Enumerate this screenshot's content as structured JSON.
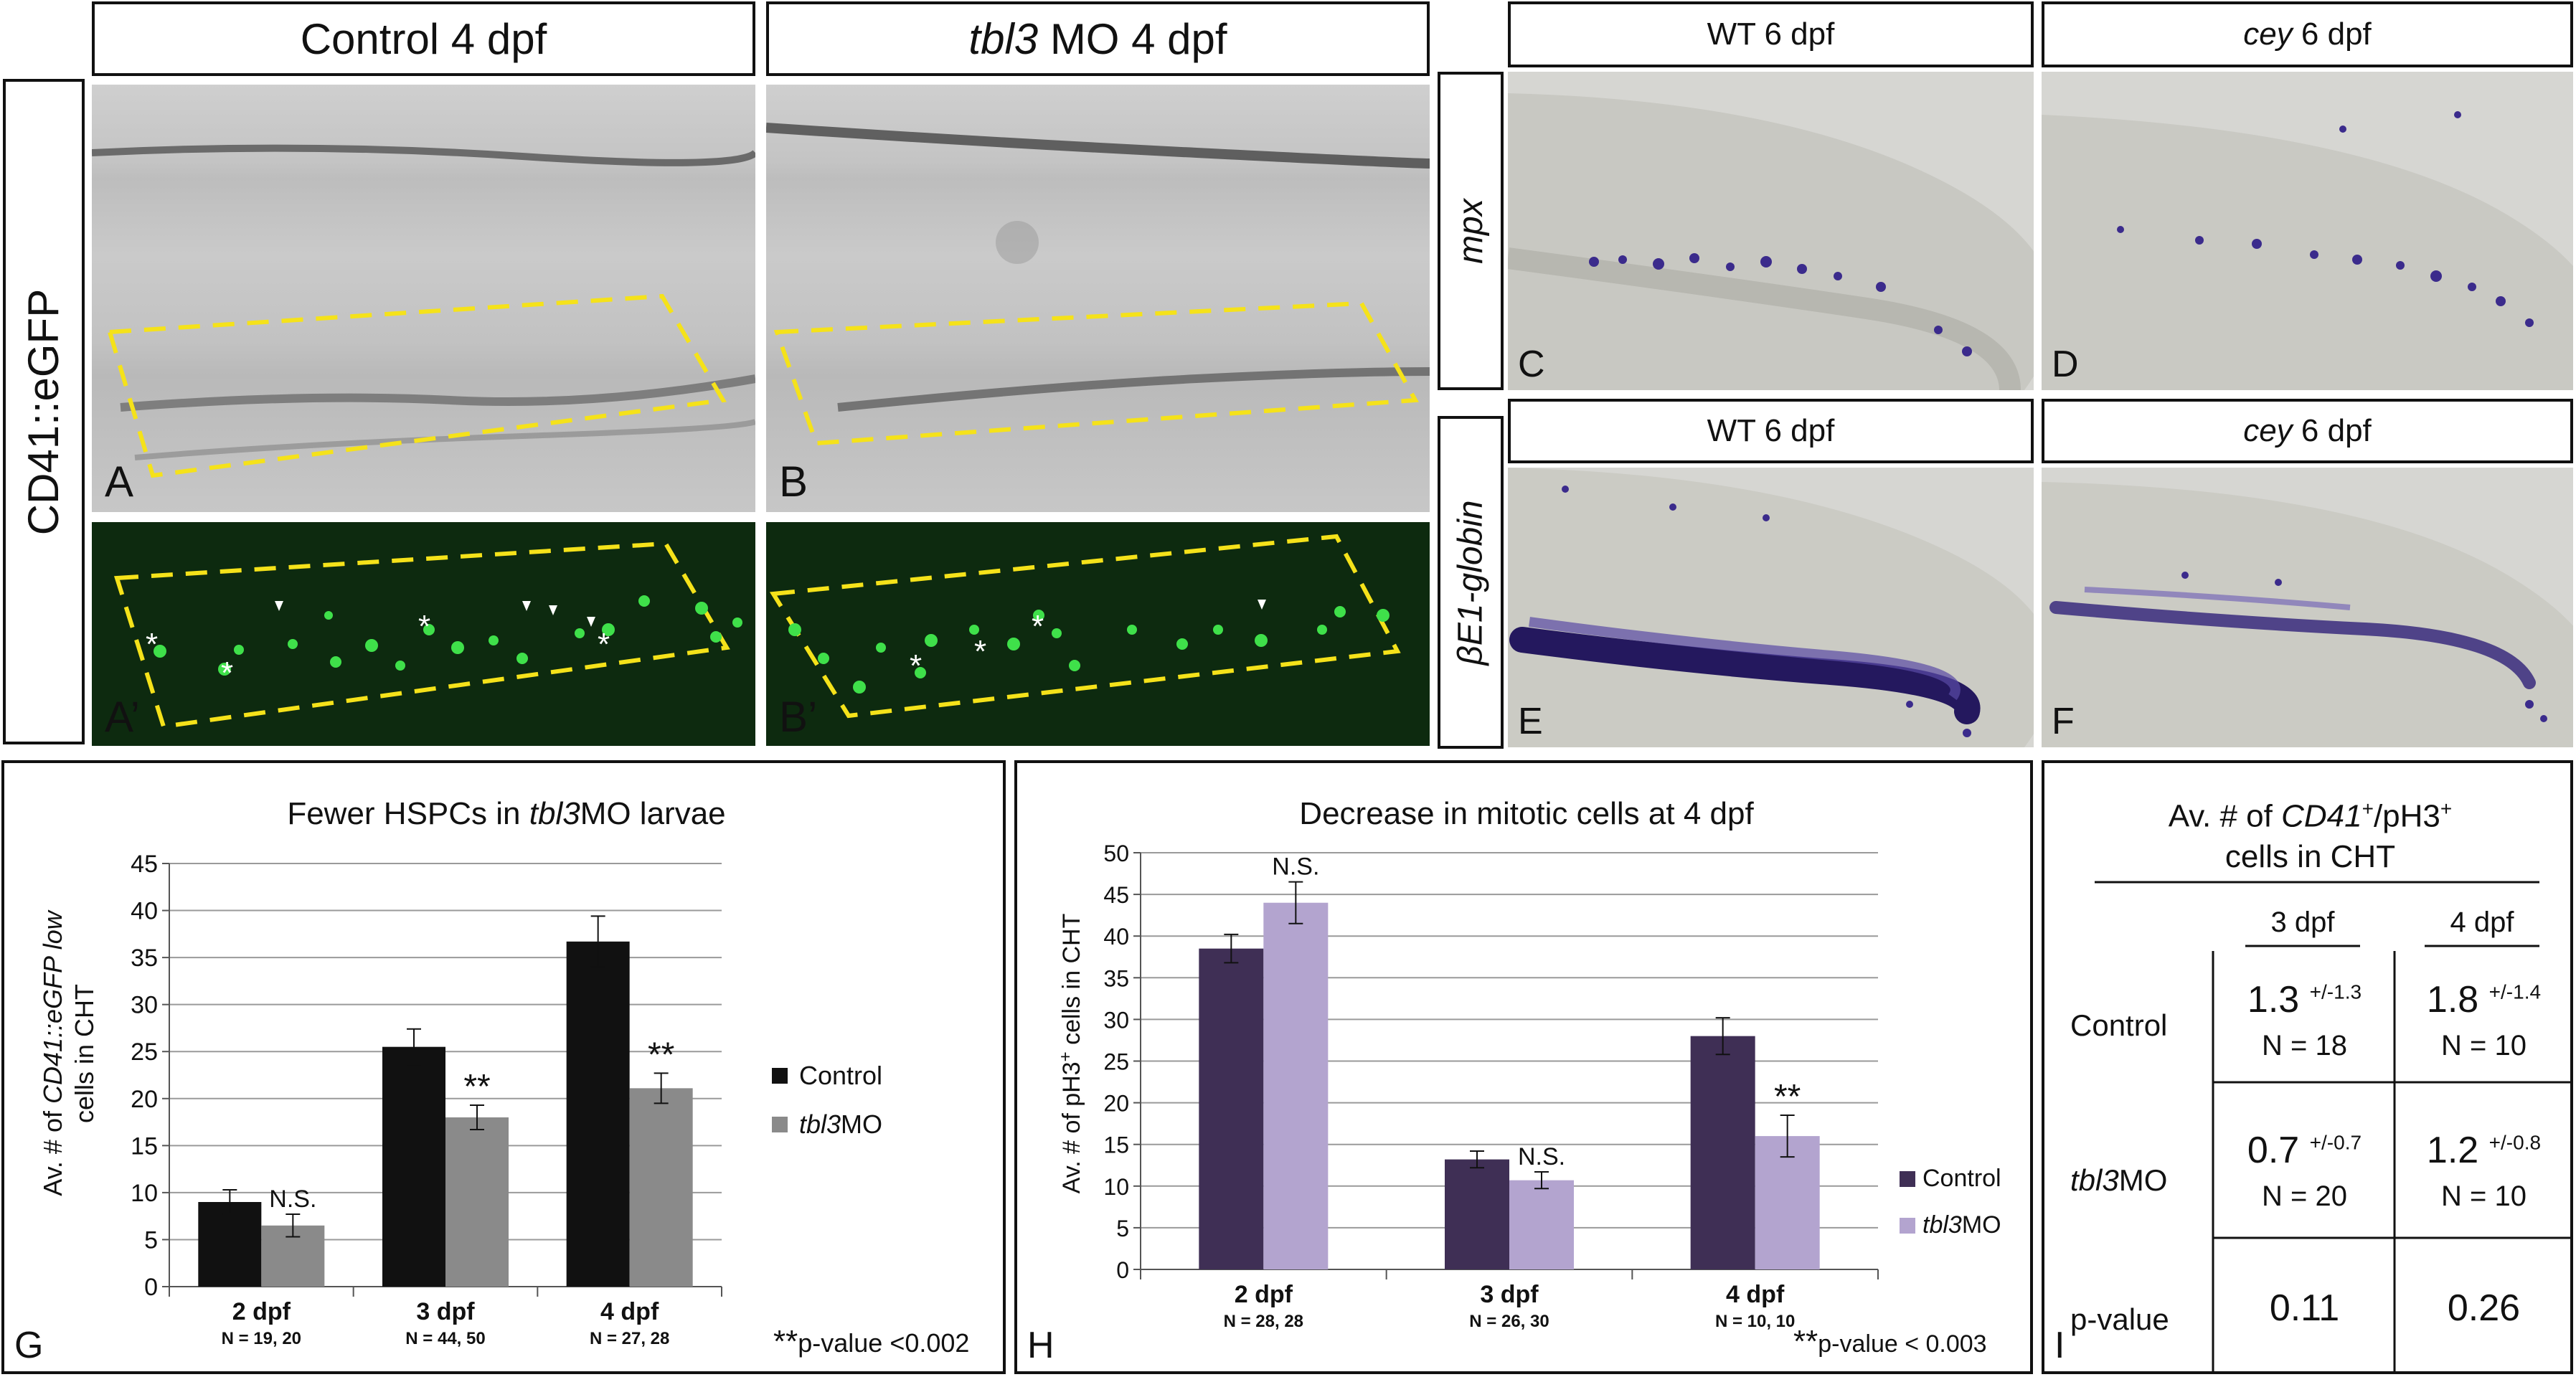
{
  "top_left": {
    "side_label": "CD41::eGFP",
    "col_a_title": "Control 4 dpf",
    "col_b_title_italic": "tbl3",
    "col_b_title_rest": " MO 4 dpf",
    "panel_a": "A",
    "panel_b": "B",
    "panel_a2": "A’",
    "panel_b2": "B’"
  },
  "top_right": {
    "row1_label": "mpx",
    "row2_label": "βE1-globin",
    "c_title": "WT 6 dpf",
    "d_title_italic": "cey",
    "d_title_rest": " 6 dpf",
    "e_title": "WT 6 dpf",
    "f_title_italic": "cey",
    "f_title_rest": " 6 dpf",
    "panel_c": "C",
    "panel_d": "D",
    "panel_e": "E",
    "panel_f": "F"
  },
  "chart_g": {
    "panel": "G",
    "title_pre": "Fewer HSPCs in ",
    "title_italic": "tbl3",
    "title_post": "MO larvae",
    "ylabel_line1_pre": "Av. # of ",
    "ylabel_line1_italic": "CD41::eGFP low",
    "ylabel_line2": "cells in CHT",
    "legend_control": "Control",
    "legend_mo_italic": "tbl3",
    "legend_mo_rest": "MO",
    "pvalue_stars": "**",
    "pvalue_text": "p-value <0.002"
  },
  "chart_h": {
    "panel": "H",
    "title": "Decrease in mitotic cells at 4 dpf",
    "ylabel_pre": "Av. # of pH3",
    "ylabel_sup": "+",
    "ylabel_post": " cells in CHT",
    "legend_control": "Control",
    "legend_mo_italic": "tbl3",
    "legend_mo_rest": "MO",
    "pvalue_stars": "**",
    "pvalue_text": "p-value < 0.003"
  },
  "table_i": {
    "panel": "I",
    "title_line1_pre": "Av. # of ",
    "title_line1_italic": "CD41",
    "title_line1_sup1": "+",
    "title_line1_post": "/pH3",
    "title_line1_sup2": "+",
    "title_line2": "cells in CHT",
    "col1": "3 dpf",
    "col2": "4 dpf",
    "row_control": "Control",
    "row_mo_italic": "tbl3",
    "row_mo_rest": "MO",
    "row_p": "p-value",
    "c_3_val": "1.3",
    "c_3_sd": "+/-1.3",
    "c_3_n": "N = 18",
    "c_4_val": "1.8",
    "c_4_sd": "+/-1.4",
    "c_4_n": "N = 10",
    "m_3_val": "0.7",
    "m_3_sd": "+/-0.7",
    "m_3_n": "N = 20",
    "m_4_val": "1.2",
    "m_4_sd": "+/-0.8",
    "m_4_n": "N = 10",
    "p_3": "0.11",
    "p_4": "0.26"
  },
  "chart_data": [
    {
      "type": "bar",
      "title": "Fewer HSPCs in tbl3MO larvae",
      "ylabel": "Av. # of CD41::eGFP low cells in CHT",
      "ylim": [
        0,
        45
      ],
      "yticks": [
        0,
        5,
        10,
        15,
        20,
        25,
        30,
        35,
        40,
        45
      ],
      "categories": [
        "2 dpf",
        "3 dpf",
        "4 dpf"
      ],
      "category_n": [
        "N = 19, 20",
        "N = 44, 50",
        "N = 27, 28"
      ],
      "series": [
        {
          "name": "Control",
          "color": "#111111",
          "values": [
            9.0,
            25.5,
            36.7
          ],
          "errors": [
            1.3,
            1.9,
            2.7
          ]
        },
        {
          "name": "tbl3MO",
          "color": "#8a8a8a",
          "values": [
            6.5,
            18.0,
            21.1
          ],
          "errors": [
            1.2,
            1.3,
            1.6
          ]
        }
      ],
      "annotations": [
        "N.S.",
        "**",
        "**"
      ],
      "grid": true,
      "legend": "right"
    },
    {
      "type": "bar",
      "title": "Decrease in mitotic cells at 4 dpf",
      "ylabel": "Av. # of pH3+ cells in CHT",
      "ylim": [
        0,
        50
      ],
      "yticks": [
        0,
        5,
        10,
        15,
        20,
        25,
        30,
        35,
        40,
        45,
        50
      ],
      "categories": [
        "2 dpf",
        "3 dpf",
        "4 dpf"
      ],
      "category_n": [
        "N = 28, 28",
        "N = 26, 30",
        "N = 10, 10"
      ],
      "series": [
        {
          "name": "Control",
          "color": "#3f2f55",
          "values": [
            38.5,
            13.2,
            28.0
          ],
          "errors": [
            1.7,
            1.0,
            2.2
          ]
        },
        {
          "name": "tbl3MO",
          "color": "#b3a4cf",
          "values": [
            44.0,
            10.7,
            16.0
          ],
          "errors": [
            2.5,
            1.0,
            2.5
          ]
        }
      ],
      "annotations": [
        "N.S.",
        "N.S.",
        "**"
      ],
      "grid": true,
      "legend": "right"
    }
  ]
}
